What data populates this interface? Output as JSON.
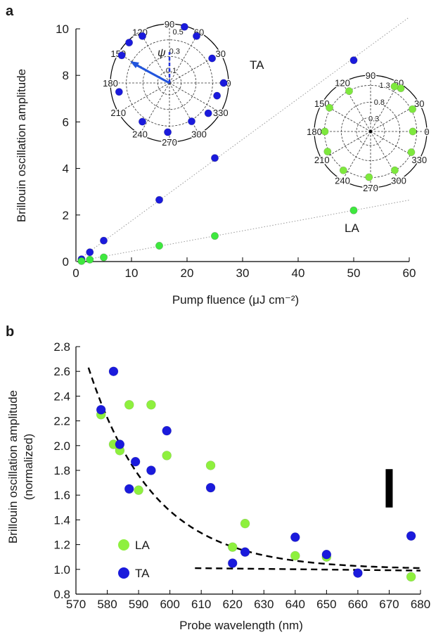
{
  "chart_data": [
    {
      "panel": "a",
      "type": "scatter",
      "xlabel": "Pump fluence (μJ cm⁻²)",
      "ylabel": "Brillouin oscillation amplitude",
      "xlim": [
        0,
        60
      ],
      "ylim": [
        0,
        10
      ],
      "xticks": [
        "0",
        "10",
        "20",
        "30",
        "40",
        "50",
        "60"
      ],
      "yticks": [
        "0",
        "2",
        "4",
        "6",
        "8",
        "10"
      ],
      "grid": false,
      "colors": {
        "TA": "#1a1adc",
        "LA": "#3ee83e"
      },
      "series": [
        {
          "name": "TA",
          "x": [
            1,
            2.5,
            5,
            15,
            25,
            50
          ],
          "y": [
            0.1,
            0.4,
            0.9,
            2.65,
            4.45,
            8.65
          ]
        },
        {
          "name": "LA",
          "x": [
            1,
            2.5,
            5,
            15,
            25,
            50
          ],
          "y": [
            0.02,
            0.08,
            0.18,
            0.68,
            1.1,
            2.2
          ]
        }
      ],
      "fit_lines": [
        {
          "series": "TA",
          "slope": 0.175,
          "intercept": 0.0,
          "style": "dotted-gray"
        },
        {
          "series": "LA",
          "slope": 0.044,
          "intercept": 0.0,
          "style": "dotted-gray"
        }
      ],
      "annotations": [
        "TA",
        "LA"
      ],
      "insets": [
        {
          "type": "polar",
          "label": "TA",
          "color": "#1a1adc",
          "angle_ticks": [
            "0",
            "30",
            "60",
            "90",
            "120",
            "150",
            "180",
            "210",
            "240",
            "270",
            "300",
            "330"
          ],
          "radial_ticks": [
            "0.1",
            "0.3",
            "0.5"
          ],
          "rmax": 0.6,
          "psi_label": "ψ",
          "points": [
            {
              "theta": 0,
              "r": 0.55
            },
            {
              "theta": 30,
              "r": 0.5
            },
            {
              "theta": 60,
              "r": 0.55
            },
            {
              "theta": 75,
              "r": 0.59
            },
            {
              "theta": 120,
              "r": 0.55
            },
            {
              "theta": 135,
              "r": 0.58
            },
            {
              "theta": 150,
              "r": 0.56
            },
            {
              "theta": 190,
              "r": 0.52
            },
            {
              "theta": 235,
              "r": 0.48
            },
            {
              "theta": 268,
              "r": 0.5
            },
            {
              "theta": 300,
              "r": 0.45
            },
            {
              "theta": 322,
              "r": 0.5
            },
            {
              "theta": 345,
              "r": 0.5
            }
          ]
        },
        {
          "type": "polar",
          "label": "LA",
          "color": "#7ee83e",
          "angle_ticks": [
            "0",
            "30",
            "60",
            "90",
            "120",
            "150",
            "180",
            "210",
            "240",
            "270",
            "300",
            "330"
          ],
          "radial_ticks": [
            "0.3",
            "0.8",
            "1.3"
          ],
          "rmax": 1.6,
          "points": [
            {
              "theta": 0,
              "r": 1.2
            },
            {
              "theta": 28,
              "r": 1.35
            },
            {
              "theta": 55,
              "r": 1.5
            },
            {
              "theta": 62,
              "r": 1.45
            },
            {
              "theta": 118,
              "r": 1.3
            },
            {
              "theta": 150,
              "r": 1.35
            },
            {
              "theta": 180,
              "r": 1.3
            },
            {
              "theta": 205,
              "r": 1.35
            },
            {
              "theta": 235,
              "r": 1.35
            },
            {
              "theta": 268,
              "r": 1.3
            },
            {
              "theta": 302,
              "r": 1.3
            },
            {
              "theta": 333,
              "r": 1.3
            }
          ]
        }
      ]
    },
    {
      "panel": "b",
      "type": "scatter",
      "xlabel": "Probe wavelength (nm)",
      "ylabel": "Brillouin oscillation amplitude (normalized)",
      "xlim": [
        570,
        680
      ],
      "ylim": [
        0.8,
        2.8
      ],
      "xticks": [
        "570",
        "580",
        "590",
        "600",
        "610",
        "620",
        "630",
        "640",
        "650",
        "660",
        "670",
        "680"
      ],
      "yticks": [
        "0.8",
        "1.0",
        "1.2",
        "1.4",
        "1.6",
        "1.8",
        "2.0",
        "2.2",
        "2.4",
        "2.6",
        "2.8"
      ],
      "grid": false,
      "legend": {
        "placement": "bottom-left",
        "entries": [
          "LA",
          "TA"
        ]
      },
      "colors": {
        "TA": "#1a1adc",
        "LA": "#8ef03e"
      },
      "series": [
        {
          "name": "TA",
          "x": [
            578,
            582,
            584,
            587,
            589,
            594,
            599,
            613,
            620,
            624,
            640,
            650,
            660,
            677
          ],
          "y": [
            2.29,
            2.6,
            2.01,
            1.65,
            1.87,
            1.8,
            2.12,
            1.66,
            1.05,
            1.14,
            1.26,
            1.12,
            0.97,
            1.27
          ]
        },
        {
          "name": "LA",
          "x": [
            578,
            582,
            584,
            587,
            590,
            594,
            599,
            613,
            620,
            624,
            640,
            650,
            677
          ],
          "y": [
            2.25,
            2.01,
            1.96,
            2.33,
            1.64,
            2.33,
            1.92,
            1.84,
            1.18,
            1.37,
            1.11,
            1.1,
            0.94
          ]
        }
      ],
      "fit_curves": [
        {
          "name": "exp-fit-upper",
          "x_range": [
            574,
            680
          ],
          "model": "1.0 + 1.63*exp(-(x-574)/21)",
          "style": "dashed-black"
        },
        {
          "name": "flat-fit-lower",
          "x_range": [
            608,
            680
          ],
          "points": [
            [
              608,
              1.01
            ],
            [
              680,
              0.99
            ]
          ],
          "style": "dashed-black"
        }
      ],
      "error_bar": {
        "x": 670,
        "y_low": 1.5,
        "y_high": 1.81
      }
    }
  ]
}
